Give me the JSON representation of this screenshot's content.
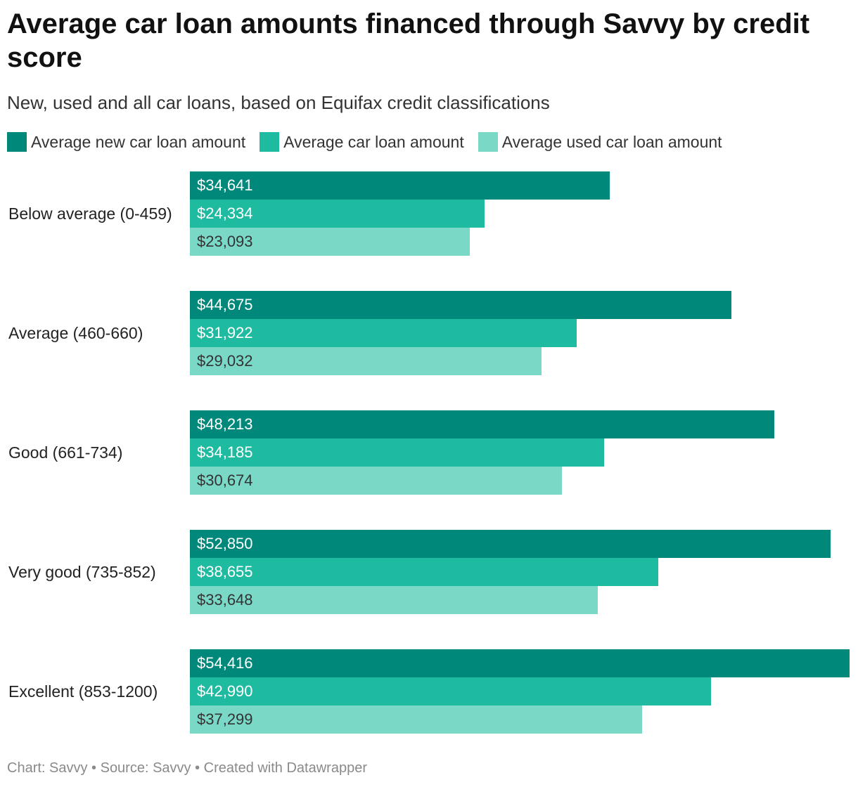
{
  "chart_data": {
    "type": "bar",
    "orientation": "horizontal",
    "title": "Average car loan amounts financed through Savvy by credit score",
    "subtitle": "New, used and all car loans, based on Equifax credit classifications",
    "categories": [
      "Below average (0-459)",
      "Average (460-660)",
      "Good (661-734)",
      "Very good (735-852)",
      "Excellent (853-1200)"
    ],
    "series": [
      {
        "name": "Average new car loan amount",
        "color": "#00897b",
        "label_color": "#ffffff",
        "values": [
          34641,
          44675,
          48213,
          52850,
          54416
        ],
        "labels": [
          "$34,641",
          "$44,675",
          "$48,213",
          "$52,850",
          "$54,416"
        ]
      },
      {
        "name": "Average car loan amount",
        "color": "#1fbba1",
        "label_color": "#ffffff",
        "values": [
          24334,
          31922,
          34185,
          38655,
          42990
        ],
        "labels": [
          "$24,334",
          "$31,922",
          "$34,185",
          "$38,655",
          "$42,990"
        ]
      },
      {
        "name": "Average used car loan amount",
        "color": "#7ad8c7",
        "label_color": "#333333",
        "values": [
          23093,
          29032,
          30674,
          33648,
          37299
        ],
        "labels": [
          "$23,093",
          "$29,032",
          "$30,674",
          "$33,648",
          "$37,299"
        ]
      }
    ],
    "legend_position": "top-left",
    "grid": false
  },
  "footer": "Chart: Savvy • Source: Savvy • Created with Datawrapper"
}
